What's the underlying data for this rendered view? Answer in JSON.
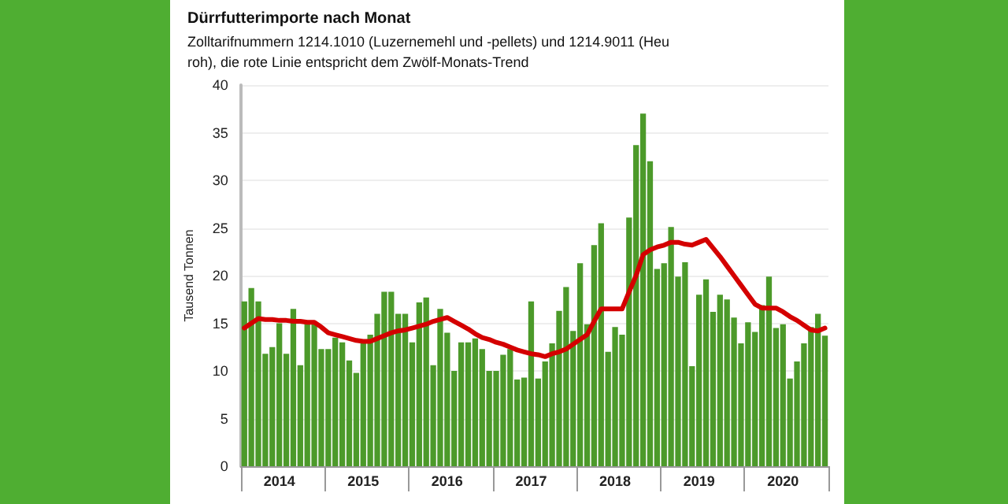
{
  "chart_data": {
    "type": "bar",
    "title": "Dürrfutterimporte nach Monat",
    "subtitle": "Zolltarifnummern 1214.1010 (Luzernemehl und -pellets) und 1214.9011 (Heu roh), die rote Linie entspricht dem Zwölf-Monats-Trend",
    "ylabel": "Tausend Tonnen",
    "categories": [
      null,
      null,
      null,
      null,
      null,
      "2014",
      null,
      null,
      null,
      null,
      null,
      null,
      null,
      null,
      null,
      null,
      null,
      "2015",
      null,
      null,
      null,
      null,
      null,
      null,
      null,
      null,
      null,
      null,
      null,
      "2016",
      null,
      null,
      null,
      null,
      null,
      null,
      null,
      null,
      null,
      null,
      null,
      "2017",
      null,
      null,
      null,
      null,
      null,
      null,
      null,
      null,
      null,
      null,
      null,
      "2018",
      null,
      null,
      null,
      null,
      null,
      null,
      null,
      null,
      null,
      null,
      null,
      "2019",
      null,
      null,
      null,
      null,
      null,
      null,
      null,
      null,
      null,
      null,
      null,
      "2020",
      null,
      null,
      null,
      null,
      null,
      null
    ],
    "series": [
      {
        "color": "#4c9a2a",
        "values": [
          17.3,
          18.7,
          17.3,
          11.8,
          12.5,
          15.0,
          11.8,
          16.5,
          10.6,
          15.0,
          15.0,
          12.3,
          12.3,
          13.5,
          13.0,
          11.1,
          9.8,
          13.0,
          13.8,
          16.0,
          18.3,
          18.3,
          16.0,
          16.0,
          13.0,
          17.2,
          17.7,
          10.6,
          16.5,
          14.0,
          10.0,
          13.0,
          13.0,
          13.4,
          12.3,
          10.0,
          10.0,
          11.7,
          12.3,
          9.1,
          9.3,
          17.3,
          9.2,
          11.0,
          12.9,
          16.3,
          18.8,
          14.2,
          21.3,
          14.9,
          23.2,
          25.5,
          12.0,
          14.6,
          13.8,
          26.1,
          33.7,
          37.0,
          32.0,
          20.7,
          21.3,
          25.1,
          19.9,
          21.4,
          10.5,
          18.0,
          19.6,
          16.2,
          18.0,
          17.5,
          15.6,
          12.9,
          15.1,
          14.1,
          16.9,
          19.9,
          14.5,
          14.9,
          9.2,
          11.0,
          12.9,
          14.6,
          16.0,
          13.7
        ]
      },
      {
        "type": "line",
        "color": "#d40000",
        "marker": "none",
        "values": [
          14.5,
          15.0,
          15.5,
          15.4,
          15.4,
          15.3,
          15.3,
          15.2,
          15.2,
          15.1,
          15.1,
          14.6,
          14.0,
          13.8,
          13.6,
          13.4,
          13.2,
          13.1,
          13.1,
          13.4,
          13.7,
          14.0,
          14.2,
          14.3,
          14.5,
          14.7,
          14.9,
          15.2,
          15.4,
          15.6,
          15.2,
          14.8,
          14.4,
          13.9,
          13.5,
          13.3,
          13.0,
          12.8,
          12.5,
          12.2,
          12.0,
          11.8,
          11.7,
          11.5,
          11.8,
          12.0,
          12.3,
          12.8,
          13.3,
          13.8,
          15.2,
          16.5,
          16.5,
          16.5,
          16.5,
          18.3,
          20.0,
          22.2,
          22.7,
          23.0,
          23.2,
          23.5,
          23.5,
          23.3,
          23.2,
          23.5,
          23.8,
          22.9,
          22.0,
          21.0,
          20.0,
          19.0,
          18.0,
          17.0,
          16.6,
          16.6,
          16.6,
          16.2,
          15.7,
          15.3,
          14.8,
          14.3,
          14.2,
          14.5
        ]
      }
    ],
    "ylim": [
      0,
      40
    ],
    "yticks": [
      0,
      5,
      10,
      15,
      20,
      25,
      30,
      35,
      40
    ],
    "grid": "y"
  }
}
